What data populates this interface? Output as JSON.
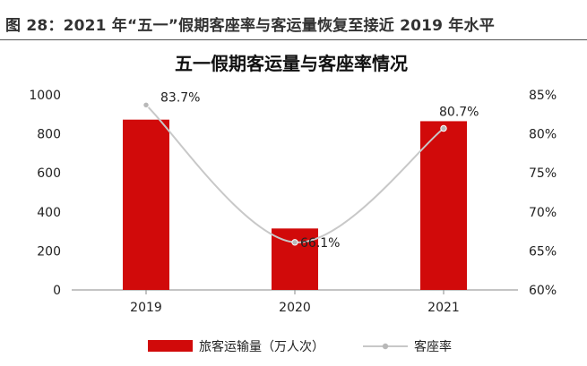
{
  "figure": {
    "caption": "图 28：2021 年“五一”假期客座率与客运量恢复至接近 2019 年水平"
  },
  "colors": {
    "bar": "#d10a0a",
    "line": "#c8c8c8",
    "marker": "#b8b8b8",
    "axis": "#888888"
  },
  "chart_data": {
    "type": "bar",
    "title": "五一假期客运量与客座率情况",
    "categories": [
      "2019",
      "2020",
      "2021"
    ],
    "series": [
      {
        "name": "旅客运输量（万人次）",
        "type": "bar",
        "axis": "left",
        "values": [
          873,
          315,
          865
        ]
      },
      {
        "name": "客座率",
        "type": "line",
        "axis": "right",
        "values": [
          83.7,
          66.1,
          80.7
        ],
        "labels": [
          "83.7%",
          "66.1%",
          "80.7%"
        ]
      }
    ],
    "ylim_left": [
      0,
      1000
    ],
    "yticks_left": [
      "0",
      "200",
      "400",
      "600",
      "800",
      "1000"
    ],
    "ylim_right": [
      60,
      85
    ],
    "yticks_right": [
      "60%",
      "65%",
      "70%",
      "75%",
      "80%",
      "85%"
    ],
    "grid": false,
    "legend": "bottom"
  }
}
